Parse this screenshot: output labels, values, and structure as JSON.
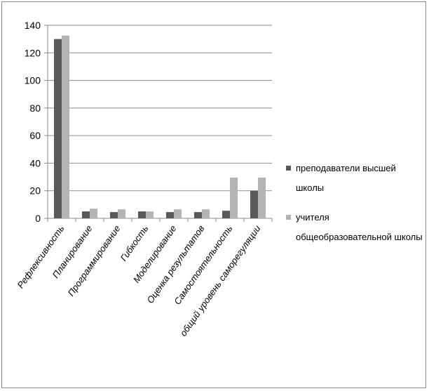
{
  "chart_data": {
    "type": "bar",
    "title": "",
    "xlabel": "",
    "ylabel": "",
    "ylim": [
      0,
      140
    ],
    "yticks": [
      0,
      20,
      40,
      60,
      80,
      100,
      120,
      140
    ],
    "grid": true,
    "legend_position": "right",
    "categories": [
      "Рефлексивность",
      "Планирование",
      "Программирование",
      "Гибкость",
      "Моделирование",
      "Оценка результатов",
      "Самостоятельность",
      "общий уровень саморегуляции"
    ],
    "series": [
      {
        "name": "преподаватели высшей школы",
        "color": "#595959",
        "values": [
          130,
          5,
          4.5,
          5,
          4.5,
          4.5,
          5.5,
          20
        ]
      },
      {
        "name": "учителя общеобразовательной школы",
        "color": "#b3b3b3",
        "values": [
          132.5,
          7,
          6.5,
          5,
          6.5,
          6.5,
          29.5,
          29.5
        ]
      }
    ]
  }
}
